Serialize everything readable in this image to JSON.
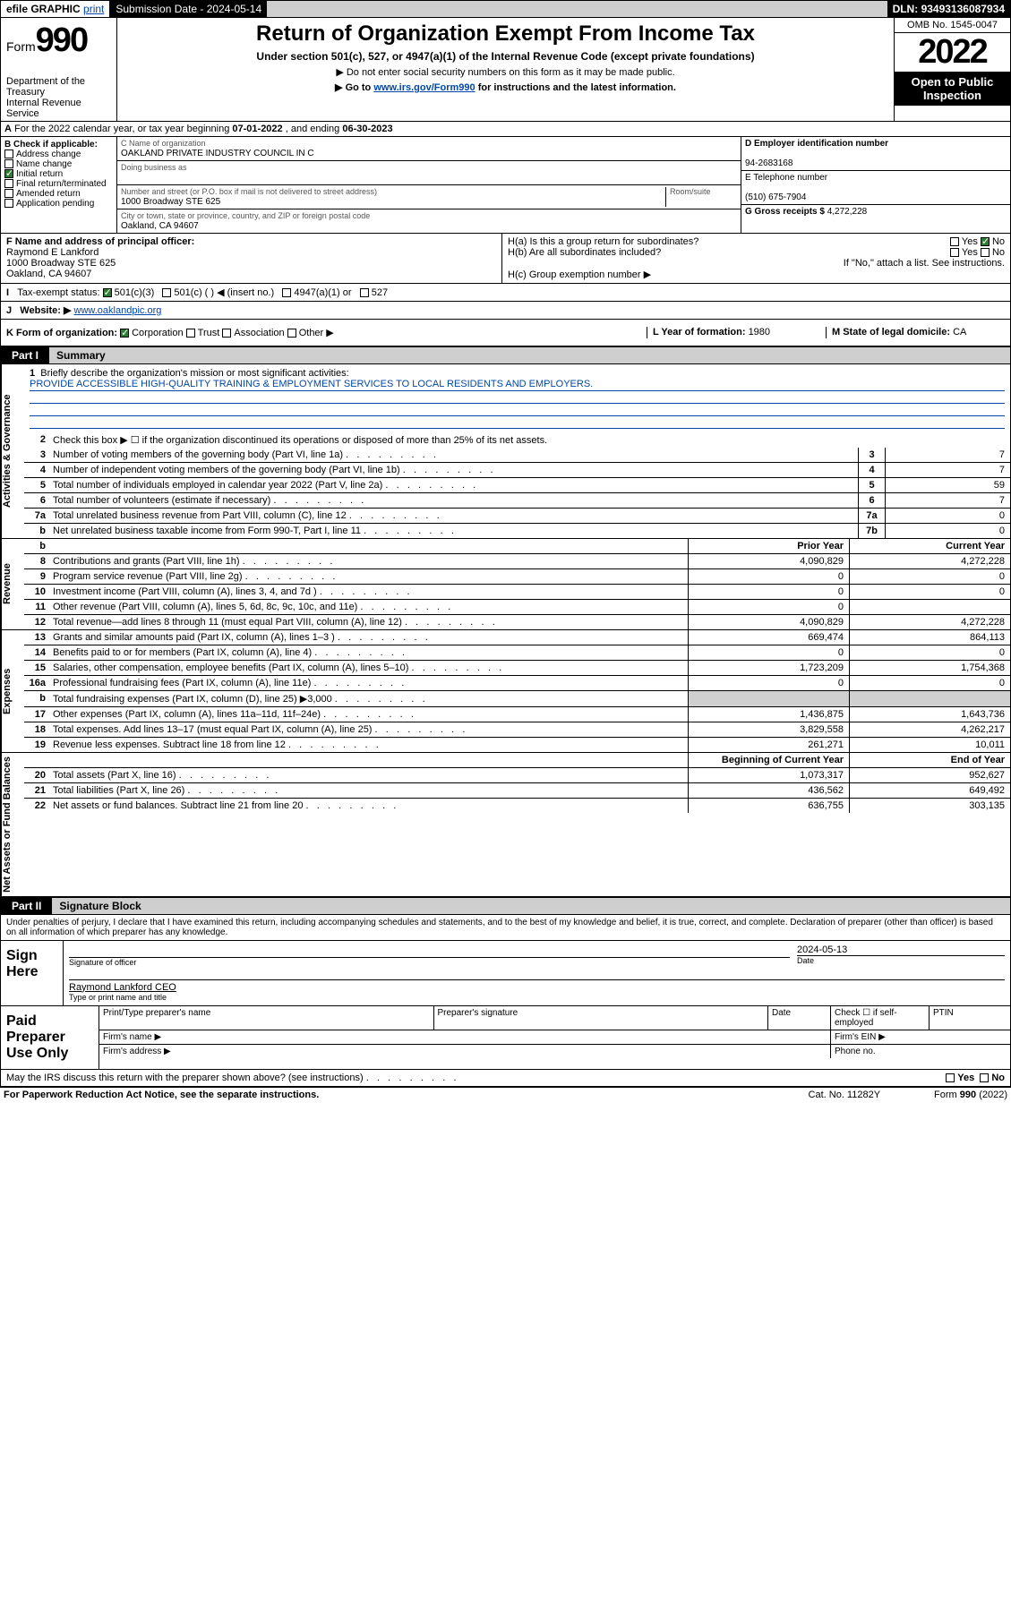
{
  "top": {
    "efile": "efile GRAPHIC",
    "print": "print",
    "subdate_lbl": "Submission Date - ",
    "subdate": "2024-05-14",
    "dln_lbl": "DLN: ",
    "dln": "93493136087934"
  },
  "hdr": {
    "form_word": "Form",
    "form_num": "990",
    "dept": "Department of the Treasury",
    "irs": "Internal Revenue Service",
    "title": "Return of Organization Exempt From Income Tax",
    "sub1": "Under section 501(c), 527, or 4947(a)(1) of the Internal Revenue Code (except private foundations)",
    "sub2": "▶ Do not enter social security numbers on this form as it may be made public.",
    "sub3_pre": "▶ Go to ",
    "sub3_link": "www.irs.gov/Form990",
    "sub3_post": " for instructions and the latest information.",
    "omb": "OMB No. 1545-0047",
    "year": "2022",
    "otp": "Open to Public Inspection"
  },
  "A": {
    "text": "For the 2022 calendar year, or tax year beginning ",
    "beg": "07-01-2022",
    "mid": "  , and ending ",
    "end": "06-30-2023"
  },
  "B": {
    "lbl": "B Check if applicable:",
    "items": [
      "Address change",
      "Name change",
      "Initial return",
      "Final return/terminated",
      "Amended return",
      "Application pending"
    ],
    "checked_idx": 2
  },
  "C": {
    "lbl": "C Name of organization",
    "name": "OAKLAND PRIVATE INDUSTRY COUNCIL IN C",
    "dba_lbl": "Doing business as",
    "addr_lbl": "Number and street (or P.O. box if mail is not delivered to street address)",
    "room_lbl": "Room/suite",
    "addr": "1000 Broadway STE 625",
    "city_lbl": "City or town, state or province, country, and ZIP or foreign postal code",
    "city": "Oakland, CA  94607"
  },
  "D": {
    "lbl": "D Employer identification number",
    "val": "94-2683168"
  },
  "E": {
    "lbl": "E Telephone number",
    "val": "(510) 675-7904"
  },
  "G": {
    "lbl": "G Gross receipts $ ",
    "val": "4,272,228"
  },
  "F": {
    "lbl": "F Name and address of principal officer:",
    "name": "Raymond E Lankford",
    "addr1": "1000 Broadway STE 625",
    "addr2": "Oakland, CA  94607"
  },
  "H": {
    "a": "H(a)  Is this a group return for subordinates?",
    "b": "H(b)  Are all subordinates included?",
    "bnote": "If \"No,\" attach a list. See instructions.",
    "c": "H(c)  Group exemption number ▶",
    "yes": "Yes",
    "no": "No"
  },
  "I": {
    "lbl": "Tax-exempt status:",
    "opts": [
      "501(c)(3)",
      "501(c) (  ) ◀ (insert no.)",
      "4947(a)(1) or",
      "527"
    ],
    "checked_idx": 0
  },
  "J": {
    "lbl": "Website: ▶",
    "val": "www.oaklandpic.org"
  },
  "K": {
    "lbl": "K Form of organization:",
    "opts": [
      "Corporation",
      "Trust",
      "Association",
      "Other ▶"
    ],
    "checked_idx": 0
  },
  "L": {
    "lbl": "L Year of formation: ",
    "val": "1980"
  },
  "M": {
    "lbl": "M State of legal domicile: ",
    "val": "CA"
  },
  "part1": {
    "tab": "Part I",
    "title": "Summary"
  },
  "sections": {
    "ag": "Activities & Governance",
    "rev": "Revenue",
    "exp": "Expenses",
    "na": "Net Assets or Fund Balances"
  },
  "mission": {
    "lbl": "Briefly describe the organization's mission or most significant activities:",
    "txt": "PROVIDE ACCESSIBLE HIGH-QUALITY TRAINING & EMPLOYMENT SERVICES TO LOCAL RESIDENTS AND EMPLOYERS."
  },
  "line2": "Check this box ▶ ☐  if the organization discontinued its operations or disposed of more than 25% of its net assets.",
  "gov_lines": [
    {
      "n": "3",
      "t": "Number of voting members of the governing body (Part VI, line 1a)",
      "box": "3",
      "v": "7"
    },
    {
      "n": "4",
      "t": "Number of independent voting members of the governing body (Part VI, line 1b)",
      "box": "4",
      "v": "7"
    },
    {
      "n": "5",
      "t": "Total number of individuals employed in calendar year 2022 (Part V, line 2a)",
      "box": "5",
      "v": "59"
    },
    {
      "n": "6",
      "t": "Total number of volunteers (estimate if necessary)",
      "box": "6",
      "v": "7"
    },
    {
      "n": "7a",
      "t": "Total unrelated business revenue from Part VIII, column (C), line 12",
      "box": "7a",
      "v": "0"
    },
    {
      "n": "b",
      "t": "Net unrelated business taxable income from Form 990-T, Part I, line 11",
      "box": "7b",
      "v": "0"
    }
  ],
  "cols": {
    "prior": "Prior Year",
    "current": "Current Year",
    "boc": "Beginning of Current Year",
    "eoy": "End of Year"
  },
  "rev_lines": [
    {
      "n": "8",
      "t": "Contributions and grants (Part VIII, line 1h)",
      "p": "4,090,829",
      "c": "4,272,228"
    },
    {
      "n": "9",
      "t": "Program service revenue (Part VIII, line 2g)",
      "p": "0",
      "c": "0"
    },
    {
      "n": "10",
      "t": "Investment income (Part VIII, column (A), lines 3, 4, and 7d )",
      "p": "0",
      "c": "0"
    },
    {
      "n": "11",
      "t": "Other revenue (Part VIII, column (A), lines 5, 6d, 8c, 9c, 10c, and 11e)",
      "p": "0",
      "c": ""
    },
    {
      "n": "12",
      "t": "Total revenue—add lines 8 through 11 (must equal Part VIII, column (A), line 12)",
      "p": "4,090,829",
      "c": "4,272,228"
    }
  ],
  "exp_lines": [
    {
      "n": "13",
      "t": "Grants and similar amounts paid (Part IX, column (A), lines 1–3 )",
      "p": "669,474",
      "c": "864,113"
    },
    {
      "n": "14",
      "t": "Benefits paid to or for members (Part IX, column (A), line 4)",
      "p": "0",
      "c": "0"
    },
    {
      "n": "15",
      "t": "Salaries, other compensation, employee benefits (Part IX, column (A), lines 5–10)",
      "p": "1,723,209",
      "c": "1,754,368"
    },
    {
      "n": "16a",
      "t": "Professional fundraising fees (Part IX, column (A), line 11e)",
      "p": "0",
      "c": "0"
    },
    {
      "n": "b",
      "t": "Total fundraising expenses (Part IX, column (D), line 25) ▶3,000",
      "p": "",
      "c": "",
      "shade": true
    },
    {
      "n": "17",
      "t": "Other expenses (Part IX, column (A), lines 11a–11d, 11f–24e)",
      "p": "1,436,875",
      "c": "1,643,736"
    },
    {
      "n": "18",
      "t": "Total expenses. Add lines 13–17 (must equal Part IX, column (A), line 25)",
      "p": "3,829,558",
      "c": "4,262,217"
    },
    {
      "n": "19",
      "t": "Revenue less expenses. Subtract line 18 from line 12",
      "p": "261,271",
      "c": "10,011"
    }
  ],
  "na_lines": [
    {
      "n": "20",
      "t": "Total assets (Part X, line 16)",
      "p": "1,073,317",
      "c": "952,627"
    },
    {
      "n": "21",
      "t": "Total liabilities (Part X, line 26)",
      "p": "436,562",
      "c": "649,492"
    },
    {
      "n": "22",
      "t": "Net assets or fund balances. Subtract line 21 from line 20",
      "p": "636,755",
      "c": "303,135"
    }
  ],
  "part2": {
    "tab": "Part II",
    "title": "Signature Block"
  },
  "sig": {
    "decl": "Under penalties of perjury, I declare that I have examined this return, including accompanying schedules and statements, and to the best of my knowledge and belief, it is true, correct, and complete. Declaration of preparer (other than officer) is based on all information of which preparer has any knowledge.",
    "sign_here": "Sign Here",
    "sig_of": "Signature of officer",
    "date_lbl": "Date",
    "date": "2024-05-13",
    "name": "Raymond Lankford CEO",
    "type_lbl": "Type or print name and title"
  },
  "prep": {
    "lbl": "Paid Preparer Use Only",
    "r1": [
      "Print/Type preparer's name",
      "Preparer's signature",
      "Date"
    ],
    "r1_chk": "Check ☐ if self-employed",
    "r1_ptin": "PTIN",
    "r2a": "Firm's name  ▶",
    "r2b": "Firm's EIN ▶",
    "r3a": "Firm's address ▶",
    "r3b": "Phone no."
  },
  "discuss": {
    "q": "May the IRS discuss this return with the preparer shown above? (see instructions)",
    "yes": "Yes",
    "no": "No"
  },
  "foot": {
    "l": "For Paperwork Reduction Act Notice, see the separate instructions.",
    "m": "Cat. No. 11282Y",
    "r": "Form 990 (2022)"
  }
}
